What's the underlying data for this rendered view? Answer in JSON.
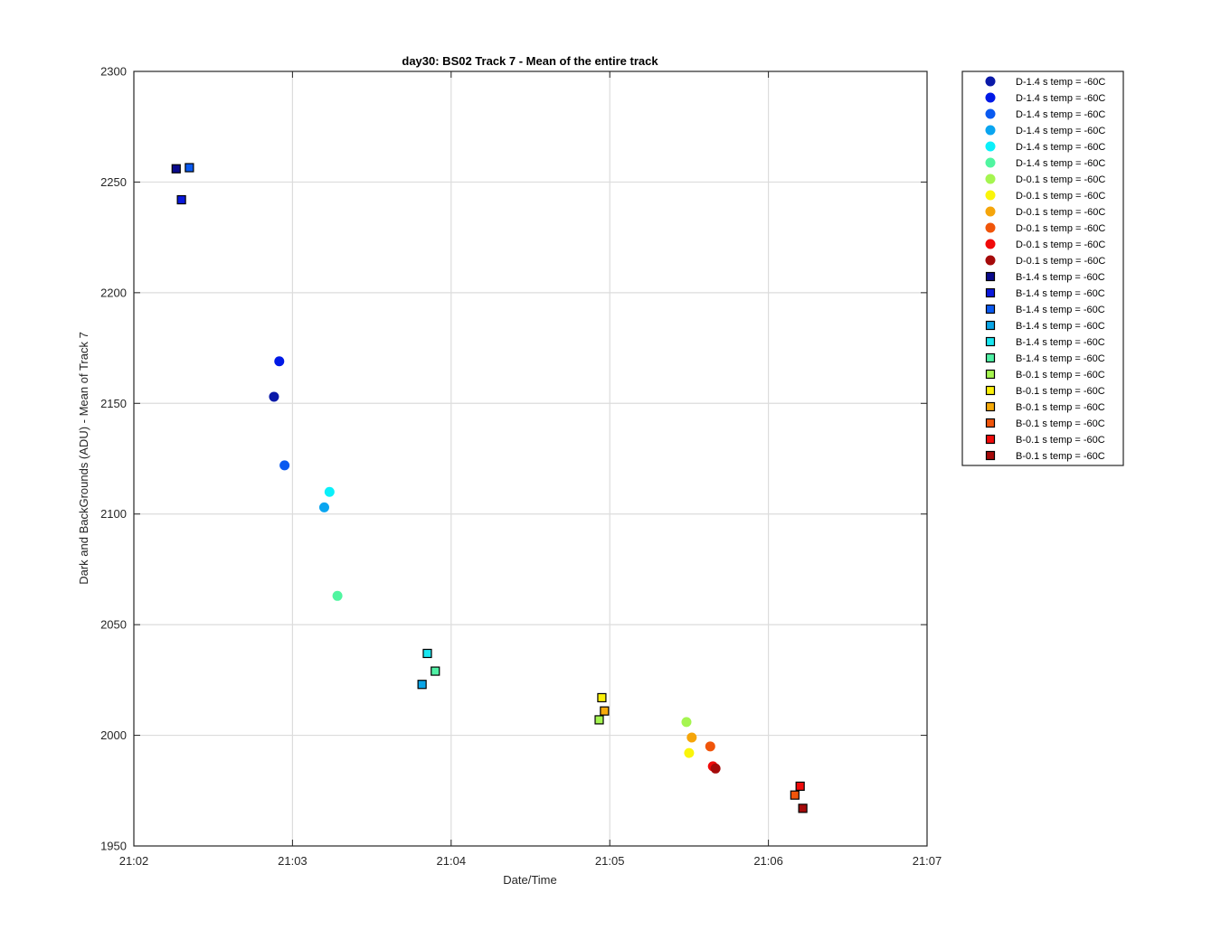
{
  "chart_data": {
    "type": "scatter",
    "title": "day30: BS02  Track 7 - Mean of the entire track",
    "xlabel": "Date/Time",
    "ylabel": "Dark and BackGrounds (ADU) - Mean of Track 7",
    "xlim": [
      "21:02",
      "21:07"
    ],
    "ylim": [
      1950,
      2300
    ],
    "x_ticks": [
      "21:02",
      "21:03",
      "21:04",
      "21:05",
      "21:06",
      "21:07"
    ],
    "y_ticks": [
      1950,
      2000,
      2050,
      2100,
      2150,
      2200,
      2250,
      2300
    ],
    "grid": true,
    "legend_position": "outside-right",
    "series": [
      {
        "name": "D-1.4 s temp = -60C",
        "marker": "circle",
        "color": "#0A19A8",
        "points": [
          {
            "x": "21:02:53",
            "y": 2153
          }
        ]
      },
      {
        "name": "D-1.4 s temp = -60C",
        "marker": "circle",
        "color": "#0019E6",
        "points": [
          {
            "x": "21:02:55",
            "y": 2169
          }
        ]
      },
      {
        "name": "D-1.4 s temp = -60C",
        "marker": "circle",
        "color": "#0A5AF0",
        "points": [
          {
            "x": "21:02:57",
            "y": 2122
          }
        ]
      },
      {
        "name": "D-1.4 s temp = -60C",
        "marker": "circle",
        "color": "#0AA5F0",
        "points": [
          {
            "x": "21:03:12",
            "y": 2103
          }
        ]
      },
      {
        "name": "D-1.4 s temp = -60C",
        "marker": "circle",
        "color": "#0AF0FA",
        "points": [
          {
            "x": "21:03:14",
            "y": 2110
          }
        ]
      },
      {
        "name": "D-1.4 s temp = -60C",
        "marker": "circle",
        "color": "#50F5A0",
        "points": [
          {
            "x": "21:03:17",
            "y": 2063
          }
        ]
      },
      {
        "name": "D-0.1 s temp = -60C",
        "marker": "circle",
        "color": "#A5F550",
        "points": [
          {
            "x": "21:05:29",
            "y": 2006
          }
        ]
      },
      {
        "name": "D-0.1 s temp = -60C",
        "marker": "circle",
        "color": "#FAF50A",
        "points": [
          {
            "x": "21:05:30",
            "y": 1992
          }
        ]
      },
      {
        "name": "D-0.1 s temp = -60C",
        "marker": "circle",
        "color": "#F5A50A",
        "points": [
          {
            "x": "21:05:31",
            "y": 1999
          }
        ]
      },
      {
        "name": "D-0.1 s temp = -60C",
        "marker": "circle",
        "color": "#F0550A",
        "points": [
          {
            "x": "21:05:38",
            "y": 1995
          }
        ]
      },
      {
        "name": "D-0.1 s temp = -60C",
        "marker": "circle",
        "color": "#F00A0A",
        "points": [
          {
            "x": "21:05:39",
            "y": 1986
          }
        ]
      },
      {
        "name": "D-0.1 s temp = -60C",
        "marker": "circle",
        "color": "#A50A0A",
        "points": [
          {
            "x": "21:05:40",
            "y": 1985
          }
        ]
      },
      {
        "name": "B-1.4 s temp = -60C",
        "marker": "square",
        "color": "#0A0A8C",
        "points": [
          {
            "x": "21:02:16",
            "y": 2256
          }
        ]
      },
      {
        "name": "B-1.4 s temp = -60C",
        "marker": "square",
        "color": "#0A19DC",
        "points": [
          {
            "x": "21:02:18",
            "y": 2242
          }
        ]
      },
      {
        "name": "B-1.4 s temp = -60C",
        "marker": "square",
        "color": "#0A5AF0",
        "points": [
          {
            "x": "21:02:21",
            "y": 2256.5
          }
        ]
      },
      {
        "name": "B-1.4 s temp = -60C",
        "marker": "square",
        "color": "#0AA5E6",
        "points": [
          {
            "x": "21:03:49",
            "y": 2023
          }
        ]
      },
      {
        "name": "B-1.4 s temp = -60C",
        "marker": "square",
        "color": "#19E6F0",
        "points": [
          {
            "x": "21:03:51",
            "y": 2037
          }
        ]
      },
      {
        "name": "B-1.4 s temp = -60C",
        "marker": "square",
        "color": "#50F0A5",
        "points": [
          {
            "x": "21:03:54",
            "y": 2029
          }
        ]
      },
      {
        "name": "B-0.1 s temp = -60C",
        "marker": "square",
        "color": "#A5F550",
        "points": [
          {
            "x": "21:04:56",
            "y": 2007
          }
        ]
      },
      {
        "name": "B-0.1 s temp = -60C",
        "marker": "square",
        "color": "#FAF00A",
        "points": [
          {
            "x": "21:04:57",
            "y": 2017
          }
        ]
      },
      {
        "name": "B-0.1 s temp = -60C",
        "marker": "square",
        "color": "#F5AA0A",
        "points": [
          {
            "x": "21:04:58",
            "y": 2011
          }
        ]
      },
      {
        "name": "B-0.1 s temp = -60C",
        "marker": "square",
        "color": "#F0550A",
        "points": [
          {
            "x": "21:06:10",
            "y": 1973
          }
        ]
      },
      {
        "name": "B-0.1 s temp = -60C",
        "marker": "square",
        "color": "#F00A0A",
        "points": [
          {
            "x": "21:06:12",
            "y": 1977
          }
        ]
      },
      {
        "name": "B-0.1 s temp = -60C",
        "marker": "square",
        "color": "#A50A0A",
        "points": [
          {
            "x": "21:06:13",
            "y": 1967
          }
        ]
      }
    ]
  }
}
